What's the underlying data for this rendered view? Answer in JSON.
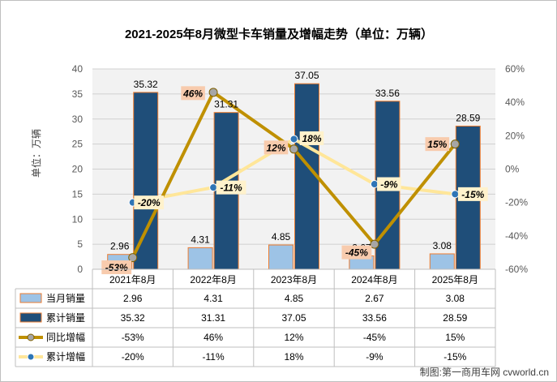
{
  "chart_data": {
    "type": "bar",
    "title": "2021-2025年8月微型卡车销量及增幅走势（单位：万辆）",
    "ylabel": "单位：万辆",
    "categories": [
      "2021年8月",
      "2022年8月",
      "2023年8月",
      "2024年8月",
      "2025年8月"
    ],
    "ylim": [
      0,
      40
    ],
    "y_ticks": [
      "0",
      "5",
      "10",
      "15",
      "20",
      "25",
      "30",
      "35",
      "40"
    ],
    "y2lim": [
      -60,
      60
    ],
    "y2_ticks": [
      "-60%",
      "-40%",
      "-20%",
      "0%",
      "20%",
      "40%",
      "60%"
    ],
    "grid": true,
    "legend_position": "bottom-table",
    "series": [
      {
        "name": "当月销量",
        "kind": "bar",
        "axis": "left",
        "color": "#9dc3e6",
        "values": [
          2.96,
          4.31,
          4.85,
          2.67,
          3.08
        ],
        "labels": [
          "2.96",
          "4.31",
          "4.85",
          "2.67",
          "3.08"
        ],
        "table": [
          "2.96",
          "4.31",
          "4.85",
          "2.67",
          "3.08"
        ]
      },
      {
        "name": "累计销量",
        "kind": "bar",
        "axis": "left",
        "color": "#1f4e79",
        "values": [
          35.32,
          31.31,
          37.05,
          33.56,
          28.59
        ],
        "labels": [
          "35.32",
          "31.31",
          "37.05",
          "33.56",
          "28.59"
        ],
        "table": [
          "35.32",
          "31.31",
          "37.05",
          "33.56",
          "28.59"
        ]
      },
      {
        "name": "同比增幅",
        "kind": "line",
        "axis": "right",
        "color": "#bf9000",
        "marker_color": "#a6a6a6",
        "label_bg": "#f8cbad",
        "values": [
          -53,
          46,
          12,
          -45,
          15
        ],
        "labels": [
          "-53%",
          "46%",
          "12%",
          "-45%",
          "15%"
        ],
        "table": [
          "-53%",
          "46%",
          "12%",
          "-45%",
          "15%"
        ]
      },
      {
        "name": "累计增幅",
        "kind": "line",
        "axis": "right",
        "color": "#ffe699",
        "marker_color": "#2e75b6",
        "label_bg": "#fff2cc",
        "values": [
          -20,
          -11,
          18,
          -9,
          -15
        ],
        "labels": [
          "-20%",
          "-11%",
          "18%",
          "-9%",
          "-15%"
        ],
        "table": [
          "-20%",
          "-11%",
          "18%",
          "-9%",
          "-15%"
        ]
      }
    ],
    "annotation": "制图:第一商用车网 cvworld.cn"
  }
}
